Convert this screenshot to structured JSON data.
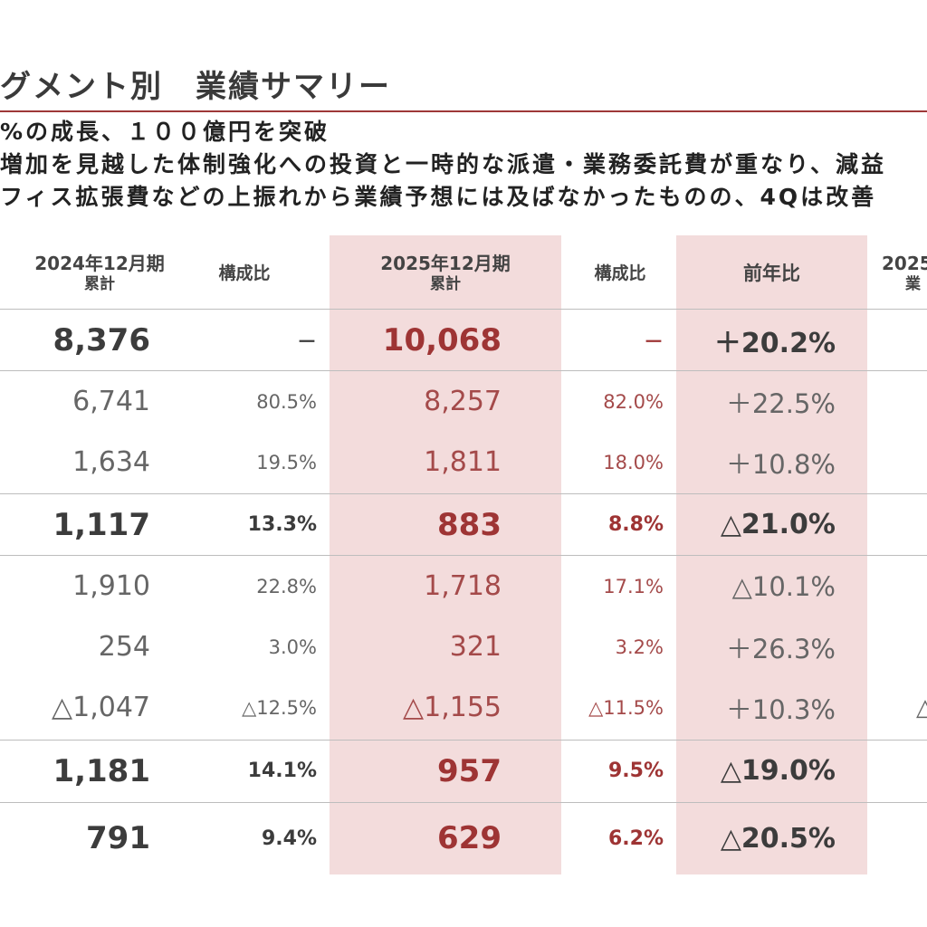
{
  "title": "グメント別　業績サマリー",
  "summary": [
    "%の成長、１００億円を突破",
    "増加を見越した体制強化への投資と一時的な派遣・業務委託費が重なり、減益",
    "フィス拡張費などの上振れから業績予想には及ばなかったものの、4Qは改善"
  ],
  "headers": {
    "prev": {
      "main": "2024年12月期",
      "sub": "累計"
    },
    "prev_ratio": "構成比",
    "cur": {
      "main": "2025年12月期",
      "sub": "累計"
    },
    "cur_ratio": "構成比",
    "yoy": "前年比",
    "next": {
      "main": "2025",
      "sub": "業"
    }
  },
  "rows": [
    {
      "prev": "8,376",
      "prev_ratio": "－",
      "cur": "10,068",
      "cur_ratio": "－",
      "yoy": "＋20.2%",
      "next": ""
    },
    {
      "prev": "6,741",
      "prev_ratio": "80.5%",
      "cur": "8,257",
      "cur_ratio": "82.0%",
      "yoy": "＋22.5%",
      "next": ""
    },
    {
      "prev": "1,634",
      "prev_ratio": "19.5%",
      "cur": "1,811",
      "cur_ratio": "18.0%",
      "yoy": "＋10.8%",
      "next": ""
    },
    {
      "prev": "1,117",
      "prev_ratio": "13.3%",
      "cur": "883",
      "cur_ratio": "8.8%",
      "yoy": "△21.0%",
      "next": ""
    },
    {
      "prev": "1,910",
      "prev_ratio": "22.8%",
      "cur": "1,718",
      "cur_ratio": "17.1%",
      "yoy": "△10.1%",
      "next": ""
    },
    {
      "prev": "254",
      "prev_ratio": "3.0%",
      "cur": "321",
      "cur_ratio": "3.2%",
      "yoy": "＋26.3%",
      "next": ""
    },
    {
      "prev": "△1,047",
      "prev_ratio": "△12.5%",
      "cur": "△1,155",
      "cur_ratio": "△11.5%",
      "yoy": "＋10.3%",
      "next": "△"
    },
    {
      "prev": "1,181",
      "prev_ratio": "14.1%",
      "cur": "957",
      "cur_ratio": "9.5%",
      "yoy": "△19.0%",
      "next": ""
    },
    {
      "prev": "791",
      "prev_ratio": "9.4%",
      "cur": "629",
      "cur_ratio": "6.2%",
      "yoy": "△20.5%",
      "next": ""
    }
  ]
}
